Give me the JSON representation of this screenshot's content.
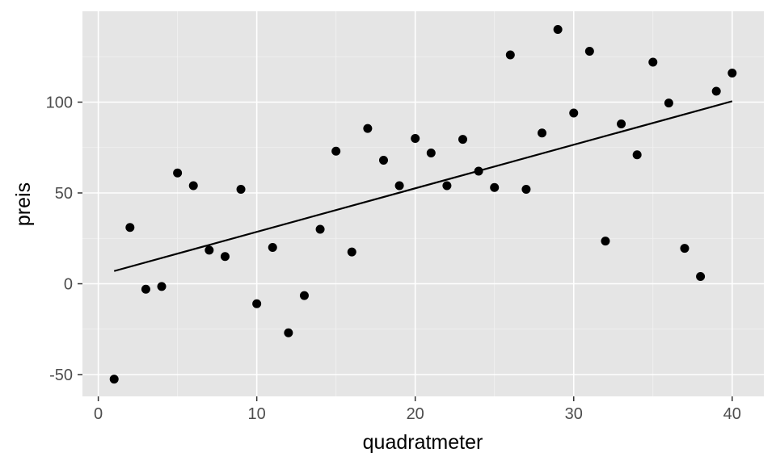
{
  "chart_data": {
    "type": "scatter",
    "xlabel": "quadratmeter",
    "ylabel": "preis",
    "xlim": [
      -1,
      42
    ],
    "ylim": [
      -62,
      150
    ],
    "x_ticks": [
      0,
      10,
      20,
      30,
      40
    ],
    "y_ticks": [
      -50,
      0,
      50,
      100
    ],
    "x_tick_labels": [
      "0",
      "10",
      "20",
      "30",
      "40"
    ],
    "y_tick_labels": [
      "-50",
      "0",
      "50",
      "100"
    ],
    "grid": true,
    "points": {
      "x": [
        1,
        2,
        3,
        4,
        5,
        6,
        7,
        8,
        9,
        10,
        11,
        12,
        13,
        14,
        15,
        16,
        17,
        18,
        19,
        20,
        21,
        22,
        23,
        24,
        25,
        26,
        27,
        28,
        29,
        30,
        31,
        32,
        33,
        34,
        35,
        36,
        37,
        38,
        39,
        40
      ],
      "y": [
        -52.5,
        31,
        -3,
        -1.5,
        61,
        54,
        18.5,
        15,
        52,
        -11,
        20,
        -27,
        -6.5,
        30,
        73,
        17.5,
        85.5,
        68,
        54,
        80,
        72,
        54,
        79.5,
        62,
        53,
        126,
        52,
        83,
        140,
        94,
        128,
        23.5,
        88,
        71,
        122,
        99.5,
        19.5,
        4,
        106,
        116
      ]
    },
    "trend_line": {
      "x": [
        1,
        40
      ],
      "y": [
        7,
        100.5
      ]
    },
    "colors": {
      "panel": "#e5e5e5",
      "points": "#000000",
      "line": "#000000"
    }
  }
}
